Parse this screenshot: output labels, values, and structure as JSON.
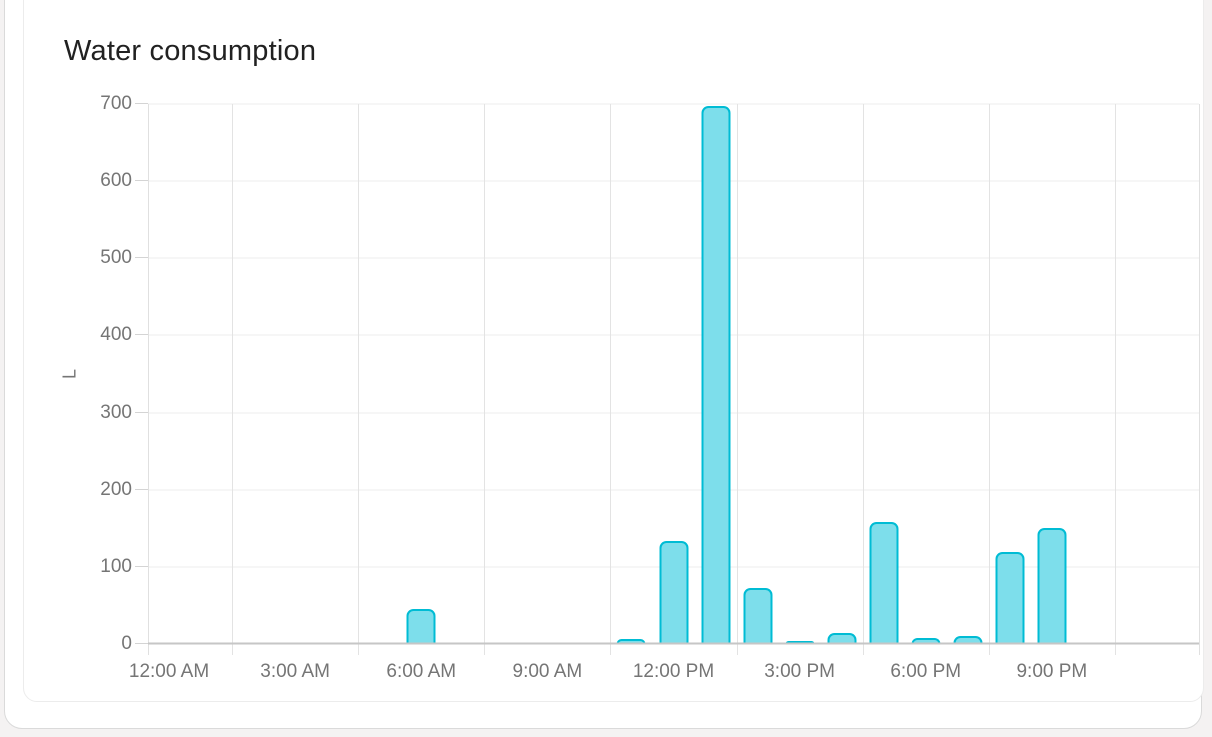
{
  "card": {
    "title": "Water consumption"
  },
  "chart_data": {
    "type": "bar",
    "title": "Water consumption",
    "xlabel": "",
    "ylabel": "L",
    "unit": "L",
    "ylim": [
      0,
      700
    ],
    "y_ticks": [
      0,
      100,
      200,
      300,
      400,
      500,
      600,
      700
    ],
    "grid": true,
    "legend": "none",
    "x_axis": {
      "start_hour": -0.5,
      "end_hour": 24.5,
      "label_interval_hours": 3,
      "gridline_offset_hours": 1.5
    },
    "x_ticks": [
      {
        "hour": 0,
        "label": "12:00 AM"
      },
      {
        "hour": 3,
        "label": "3:00 AM"
      },
      {
        "hour": 6,
        "label": "6:00 AM"
      },
      {
        "hour": 9,
        "label": "9:00 AM"
      },
      {
        "hour": 12,
        "label": "12:00 PM"
      },
      {
        "hour": 15,
        "label": "3:00 PM"
      },
      {
        "hour": 18,
        "label": "6:00 PM"
      },
      {
        "hour": 21,
        "label": "9:00 PM"
      }
    ],
    "bars": [
      {
        "time": "6:00 AM",
        "hour": 6,
        "value": 46
      },
      {
        "time": "11:00 AM",
        "hour": 11,
        "value": 6
      },
      {
        "time": "12:00 PM",
        "hour": 12,
        "value": 133
      },
      {
        "time": "1:00 PM",
        "hour": 13,
        "value": 697
      },
      {
        "time": "2:00 PM",
        "hour": 14,
        "value": 72
      },
      {
        "time": "3:00 PM",
        "hour": 15,
        "value": 2
      },
      {
        "time": "4:00 PM",
        "hour": 16,
        "value": 14
      },
      {
        "time": "5:00 PM",
        "hour": 17,
        "value": 158
      },
      {
        "time": "6:00 PM",
        "hour": 18,
        "value": 8
      },
      {
        "time": "7:00 PM",
        "hour": 19,
        "value": 11
      },
      {
        "time": "8:00 PM",
        "hour": 20,
        "value": 119
      },
      {
        "time": "9:00 PM",
        "hour": 21,
        "value": 150
      }
    ],
    "colors": {
      "bar_border": "#00bcd4",
      "bar_fill": "#7ddeeb",
      "title_text": "#212121",
      "axis_label_text": "#757575",
      "gridline": "#ececec",
      "baseline": "#c6c6c6",
      "card_border": "#ececec"
    }
  }
}
